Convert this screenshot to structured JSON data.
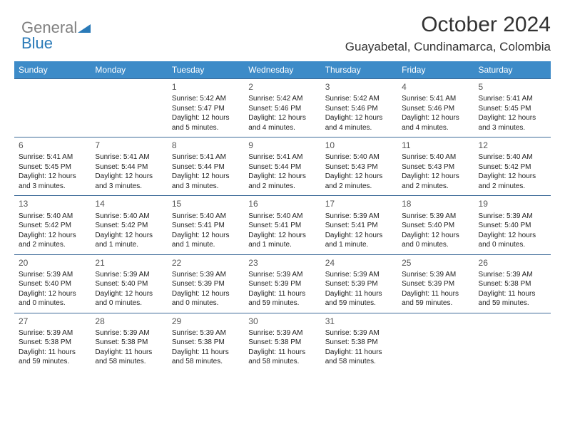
{
  "logo": {
    "part1": "General",
    "part2": "Blue"
  },
  "title": "October 2024",
  "location": "Guayabetal, Cundinamarca, Colombia",
  "colors": {
    "header_bg": "#3d8bc8",
    "header_text": "#ffffff",
    "border": "#3d6b99",
    "logo_gray": "#808080",
    "logo_blue": "#2a7ab8",
    "text": "#222222"
  },
  "day_headers": [
    "Sunday",
    "Monday",
    "Tuesday",
    "Wednesday",
    "Thursday",
    "Friday",
    "Saturday"
  ],
  "weeks": [
    [
      null,
      null,
      {
        "n": "1",
        "sunrise": "5:42 AM",
        "sunset": "5:47 PM",
        "daylight": "12 hours and 5 minutes."
      },
      {
        "n": "2",
        "sunrise": "5:42 AM",
        "sunset": "5:46 PM",
        "daylight": "12 hours and 4 minutes."
      },
      {
        "n": "3",
        "sunrise": "5:42 AM",
        "sunset": "5:46 PM",
        "daylight": "12 hours and 4 minutes."
      },
      {
        "n": "4",
        "sunrise": "5:41 AM",
        "sunset": "5:46 PM",
        "daylight": "12 hours and 4 minutes."
      },
      {
        "n": "5",
        "sunrise": "5:41 AM",
        "sunset": "5:45 PM",
        "daylight": "12 hours and 3 minutes."
      }
    ],
    [
      {
        "n": "6",
        "sunrise": "5:41 AM",
        "sunset": "5:45 PM",
        "daylight": "12 hours and 3 minutes."
      },
      {
        "n": "7",
        "sunrise": "5:41 AM",
        "sunset": "5:44 PM",
        "daylight": "12 hours and 3 minutes."
      },
      {
        "n": "8",
        "sunrise": "5:41 AM",
        "sunset": "5:44 PM",
        "daylight": "12 hours and 3 minutes."
      },
      {
        "n": "9",
        "sunrise": "5:41 AM",
        "sunset": "5:44 PM",
        "daylight": "12 hours and 2 minutes."
      },
      {
        "n": "10",
        "sunrise": "5:40 AM",
        "sunset": "5:43 PM",
        "daylight": "12 hours and 2 minutes."
      },
      {
        "n": "11",
        "sunrise": "5:40 AM",
        "sunset": "5:43 PM",
        "daylight": "12 hours and 2 minutes."
      },
      {
        "n": "12",
        "sunrise": "5:40 AM",
        "sunset": "5:42 PM",
        "daylight": "12 hours and 2 minutes."
      }
    ],
    [
      {
        "n": "13",
        "sunrise": "5:40 AM",
        "sunset": "5:42 PM",
        "daylight": "12 hours and 2 minutes."
      },
      {
        "n": "14",
        "sunrise": "5:40 AM",
        "sunset": "5:42 PM",
        "daylight": "12 hours and 1 minute."
      },
      {
        "n": "15",
        "sunrise": "5:40 AM",
        "sunset": "5:41 PM",
        "daylight": "12 hours and 1 minute."
      },
      {
        "n": "16",
        "sunrise": "5:40 AM",
        "sunset": "5:41 PM",
        "daylight": "12 hours and 1 minute."
      },
      {
        "n": "17",
        "sunrise": "5:39 AM",
        "sunset": "5:41 PM",
        "daylight": "12 hours and 1 minute."
      },
      {
        "n": "18",
        "sunrise": "5:39 AM",
        "sunset": "5:40 PM",
        "daylight": "12 hours and 0 minutes."
      },
      {
        "n": "19",
        "sunrise": "5:39 AM",
        "sunset": "5:40 PM",
        "daylight": "12 hours and 0 minutes."
      }
    ],
    [
      {
        "n": "20",
        "sunrise": "5:39 AM",
        "sunset": "5:40 PM",
        "daylight": "12 hours and 0 minutes."
      },
      {
        "n": "21",
        "sunrise": "5:39 AM",
        "sunset": "5:40 PM",
        "daylight": "12 hours and 0 minutes."
      },
      {
        "n": "22",
        "sunrise": "5:39 AM",
        "sunset": "5:39 PM",
        "daylight": "12 hours and 0 minutes."
      },
      {
        "n": "23",
        "sunrise": "5:39 AM",
        "sunset": "5:39 PM",
        "daylight": "11 hours and 59 minutes."
      },
      {
        "n": "24",
        "sunrise": "5:39 AM",
        "sunset": "5:39 PM",
        "daylight": "11 hours and 59 minutes."
      },
      {
        "n": "25",
        "sunrise": "5:39 AM",
        "sunset": "5:39 PM",
        "daylight": "11 hours and 59 minutes."
      },
      {
        "n": "26",
        "sunrise": "5:39 AM",
        "sunset": "5:38 PM",
        "daylight": "11 hours and 59 minutes."
      }
    ],
    [
      {
        "n": "27",
        "sunrise": "5:39 AM",
        "sunset": "5:38 PM",
        "daylight": "11 hours and 59 minutes."
      },
      {
        "n": "28",
        "sunrise": "5:39 AM",
        "sunset": "5:38 PM",
        "daylight": "11 hours and 58 minutes."
      },
      {
        "n": "29",
        "sunrise": "5:39 AM",
        "sunset": "5:38 PM",
        "daylight": "11 hours and 58 minutes."
      },
      {
        "n": "30",
        "sunrise": "5:39 AM",
        "sunset": "5:38 PM",
        "daylight": "11 hours and 58 minutes."
      },
      {
        "n": "31",
        "sunrise": "5:39 AM",
        "sunset": "5:38 PM",
        "daylight": "11 hours and 58 minutes."
      },
      null,
      null
    ]
  ]
}
